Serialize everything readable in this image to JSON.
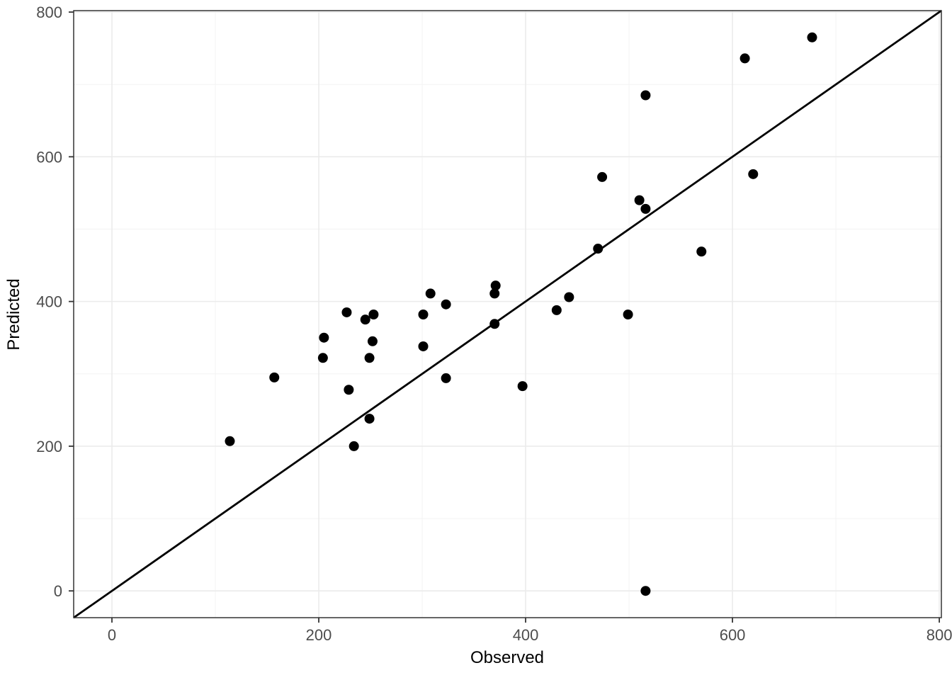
{
  "chart_data": {
    "type": "scatter",
    "title": "",
    "xlabel": "Observed",
    "ylabel": "Predicted",
    "xlim": [
      -37,
      802
    ],
    "ylim": [
      -37,
      802
    ],
    "x_ticks": [
      0,
      200,
      400,
      600,
      800
    ],
    "y_ticks": [
      0,
      200,
      400,
      600,
      800
    ],
    "x_minor_ticks": [
      100,
      300,
      500,
      700
    ],
    "y_minor_ticks": [
      100,
      300,
      500,
      700
    ],
    "grid": "major+minor",
    "legend": "none",
    "identity_line": {
      "label": "y = x",
      "span": [
        -37,
        802
      ]
    },
    "points": [
      [
        114,
        207
      ],
      [
        157,
        295
      ],
      [
        204,
        322
      ],
      [
        205,
        350
      ],
      [
        227,
        385
      ],
      [
        229,
        278
      ],
      [
        234,
        200
      ],
      [
        245,
        375
      ],
      [
        249,
        238
      ],
      [
        249,
        322
      ],
      [
        252,
        345
      ],
      [
        253,
        382
      ],
      [
        301,
        338
      ],
      [
        301,
        382
      ],
      [
        308,
        411
      ],
      [
        323,
        294
      ],
      [
        323,
        396
      ],
      [
        370,
        369
      ],
      [
        370,
        411
      ],
      [
        371,
        422
      ],
      [
        397,
        283
      ],
      [
        430,
        388
      ],
      [
        442,
        406
      ],
      [
        470,
        473
      ],
      [
        474,
        572
      ],
      [
        499,
        382
      ],
      [
        510,
        540
      ],
      [
        516,
        0
      ],
      [
        516,
        528
      ],
      [
        516,
        685
      ],
      [
        570,
        469
      ],
      [
        612,
        736
      ],
      [
        620,
        576
      ],
      [
        677,
        765
      ]
    ],
    "point_radius_px": 7,
    "colors": {
      "point": "#000000",
      "identity_line": "#000000",
      "grid_major": "#ebebeb",
      "grid_minor": "#f4f4f4",
      "panel_border": "#333333",
      "panel_background": "#ffffff",
      "tick_mark": "#333333",
      "tick_label": "#4d4d4d",
      "axis_title": "#000000",
      "figure_background": "#ffffff"
    }
  }
}
